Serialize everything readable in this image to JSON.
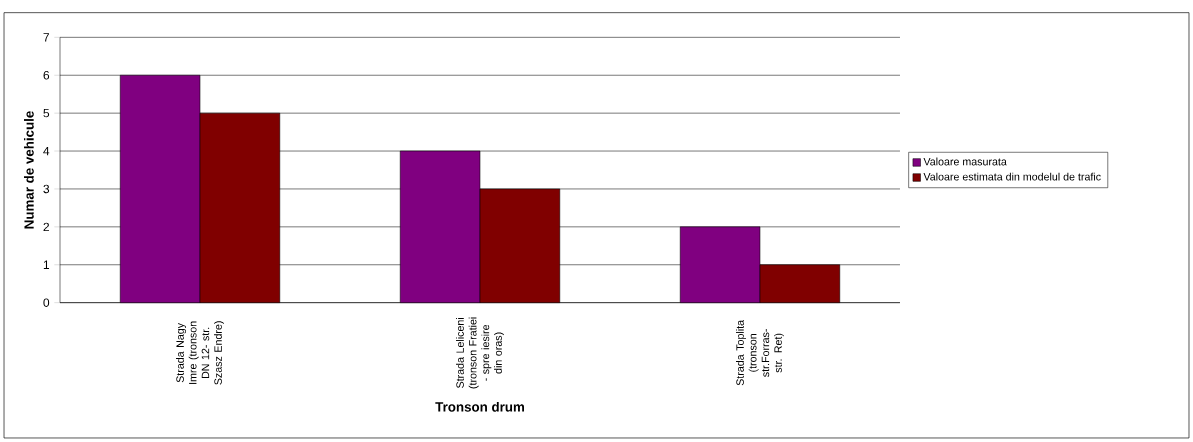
{
  "chart_data": {
    "type": "bar",
    "xlabel": "Tronson drum",
    "ylabel": "Numar de vehicule",
    "categories": [
      "Strada Nagy Imre (tronson DN 12- str. Szasz Endre)",
      "Strada Leliceni (tronson Fratiei - spre iesire din oras)",
      "Strada Toplita (tronson str.Forras- str. Ret)"
    ],
    "series": [
      {
        "name": "Valoare masurata",
        "color": "#800080",
        "values": [
          6,
          4,
          2
        ]
      },
      {
        "name": "Valoare estimata din modelul de trafic",
        "color": "#800000",
        "values": [
          5,
          3,
          1
        ]
      }
    ],
    "ylim": [
      0,
      7
    ],
    "yticks": [
      0,
      1,
      2,
      3,
      4,
      5,
      6,
      7
    ],
    "grid": "y",
    "legend": "right"
  }
}
